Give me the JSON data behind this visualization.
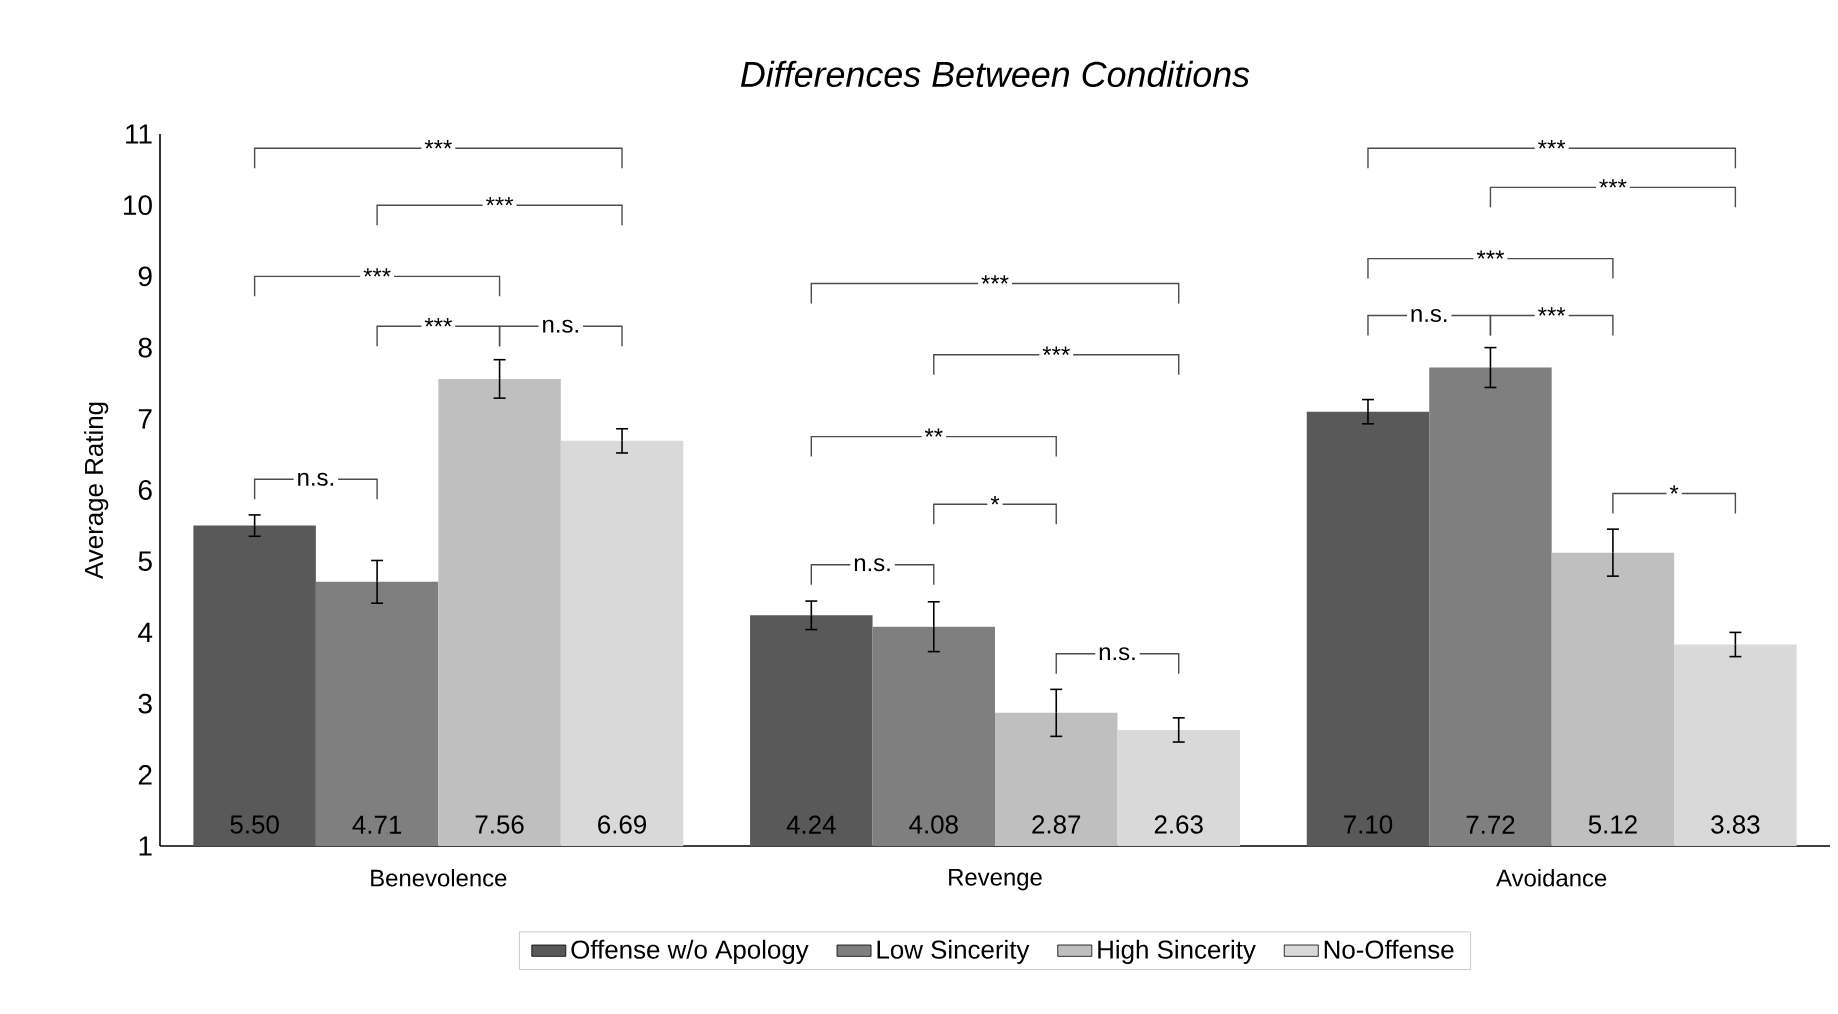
{
  "chart_data": {
    "type": "bar",
    "title": "*Differences Between Conditions*",
    "ylabel": "Average Rating",
    "categories": [
      "Benevolence",
      "Revenge",
      "Avoidance"
    ],
    "ylim": [
      1,
      11
    ],
    "yticks": [
      1,
      2,
      3,
      4,
      5,
      6,
      7,
      8,
      9,
      10,
      11
    ],
    "legend": "bottom",
    "series": [
      {
        "name": "Offense w/o Apology",
        "color": "#595959",
        "values": [
          5.5,
          4.24,
          7.1
        ],
        "errors": [
          0.15,
          0.2,
          0.17
        ],
        "value_labels": [
          "5.50",
          "4.24",
          "7.10"
        ]
      },
      {
        "name": "Low Sincerity",
        "color": "#7f7f7f",
        "values": [
          4.71,
          4.08,
          7.72
        ],
        "errors": [
          0.3,
          0.35,
          0.28
        ],
        "value_labels": [
          "4.71",
          "4.08",
          "7.72"
        ]
      },
      {
        "name": "High Sincerity",
        "color": "#bfbfbf",
        "values": [
          7.56,
          2.87,
          5.12
        ],
        "errors": [
          0.27,
          0.33,
          0.33
        ],
        "value_labels": [
          "7.56",
          "2.87",
          "5.12"
        ]
      },
      {
        "name": "No-Offense",
        "color": "#d9d9d9",
        "values": [
          6.69,
          2.63,
          3.83
        ],
        "errors": [
          0.17,
          0.17,
          0.17
        ],
        "value_labels": [
          "6.69",
          "2.63",
          "3.83"
        ]
      }
    ],
    "annotations": [
      "***",
      "***",
      "***",
      "***",
      "n.s.",
      "n.s.",
      "***",
      "***",
      "**",
      "*",
      "n.s.",
      "n.s.",
      "***",
      "***",
      "***",
      "n.s.",
      "***",
      "*"
    ]
  }
}
